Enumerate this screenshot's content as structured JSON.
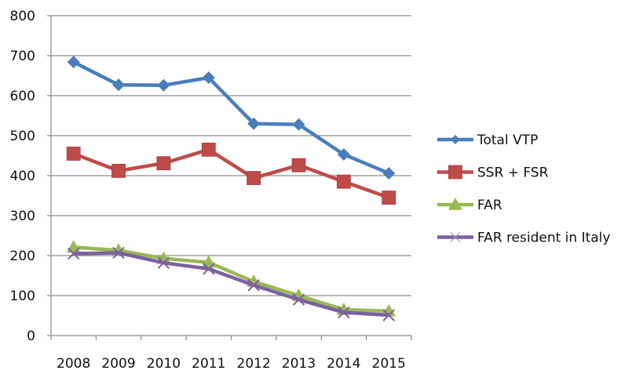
{
  "chart_data": {
    "type": "line",
    "title": "",
    "xlabel": "",
    "ylabel": "",
    "categories": [
      "2008",
      "2009",
      "2010",
      "2011",
      "2012",
      "2013",
      "2014",
      "2015"
    ],
    "ylim": [
      0,
      800
    ],
    "yticks": [
      "0",
      "100",
      "200",
      "300",
      "400",
      "500",
      "600",
      "700",
      "800"
    ],
    "grid": true,
    "legend_position": "right",
    "series": [
      {
        "name": "Total VTP",
        "color": "#4a7ebb",
        "marker": "diamond",
        "values": [
          684,
          627,
          626,
          645,
          530,
          528,
          453,
          406
        ]
      },
      {
        "name": "SSR + FSR",
        "color": "#be4b48",
        "marker": "square",
        "values": [
          455,
          412,
          431,
          465,
          394,
          426,
          385,
          345
        ]
      },
      {
        "name": "FAR",
        "color": "#98b954",
        "marker": "triangle",
        "values": [
          221,
          213,
          193,
          183,
          135,
          100,
          65,
          61
        ]
      },
      {
        "name": "FAR resident in Italy",
        "color": "#7d60a0",
        "marker": "x",
        "values": [
          205,
          207,
          182,
          167,
          126,
          90,
          58,
          51
        ]
      }
    ]
  }
}
